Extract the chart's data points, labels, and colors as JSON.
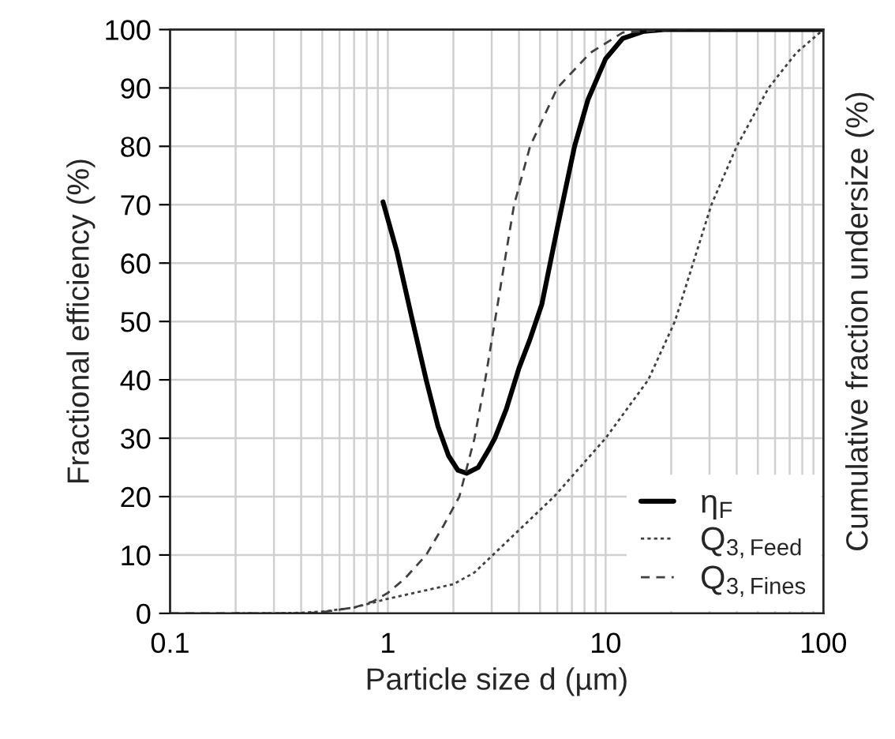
{
  "chart_data": {
    "type": "line",
    "xlabel": "Particle size d (µm)",
    "ylabel": "Fractional efficiency (%)",
    "y2label": "Cumulative fraction undersize (%)",
    "log": "x",
    "xlim": [
      0.1,
      100
    ],
    "xticks": [
      0.1,
      1,
      10,
      100
    ],
    "ylim": [
      0,
      100
    ],
    "yticks": [
      0,
      10,
      20,
      30,
      40,
      50,
      60,
      70,
      80,
      90,
      100
    ],
    "grid": true,
    "legend": "bottom right",
    "marker": "none",
    "series": [
      {
        "name": "η$_{F}$",
        "color": "#000000",
        "line_style": "solid",
        "x": [
          0.95,
          1.1,
          1.3,
          1.5,
          1.7,
          1.9,
          2.1,
          2.3,
          2.6,
          2.9,
          3.1,
          3.5,
          4.0,
          4.5,
          5.1,
          6.0,
          7.2,
          8.3,
          10,
          12,
          15,
          18.6,
          25,
          40,
          100
        ],
        "values": [
          70.5,
          62,
          50,
          40,
          32,
          27,
          24.5,
          24,
          25,
          28,
          30,
          35,
          42,
          47,
          53,
          66,
          80,
          88,
          95,
          98.5,
          99.7,
          100,
          100,
          100,
          100
        ]
      },
      {
        "name": "Q$_{3,Feed}$",
        "color": "#404040",
        "line_style": "dotted",
        "x": [
          0.2,
          0.3,
          0.4,
          0.5,
          0.7,
          1,
          2,
          2.5,
          5.8,
          10,
          15.7,
          20.8,
          30.6,
          40,
          56,
          75,
          100
        ],
        "values": [
          0,
          0,
          0.1,
          0.3,
          1,
          2.5,
          5,
          7,
          20,
          30,
          40,
          50,
          70,
          80,
          90,
          96,
          100
        ]
      },
      {
        "name": "Q$_{3,Fines}$",
        "color": "#404040",
        "line_style": "dashed",
        "x": [
          0.1,
          0.4,
          0.5,
          0.7,
          0.85,
          1,
          1.2,
          1.5,
          1.8,
          2.13,
          2.5,
          2.8,
          3.1,
          3.5,
          3.8,
          4.5,
          6.0,
          8.5,
          12,
          20,
          40
        ],
        "values": [
          0,
          0,
          0.2,
          1,
          2,
          3.5,
          6,
          10,
          15,
          20,
          30,
          40,
          50,
          62,
          70,
          80,
          90,
          96,
          99.5,
          100,
          100
        ]
      }
    ]
  }
}
